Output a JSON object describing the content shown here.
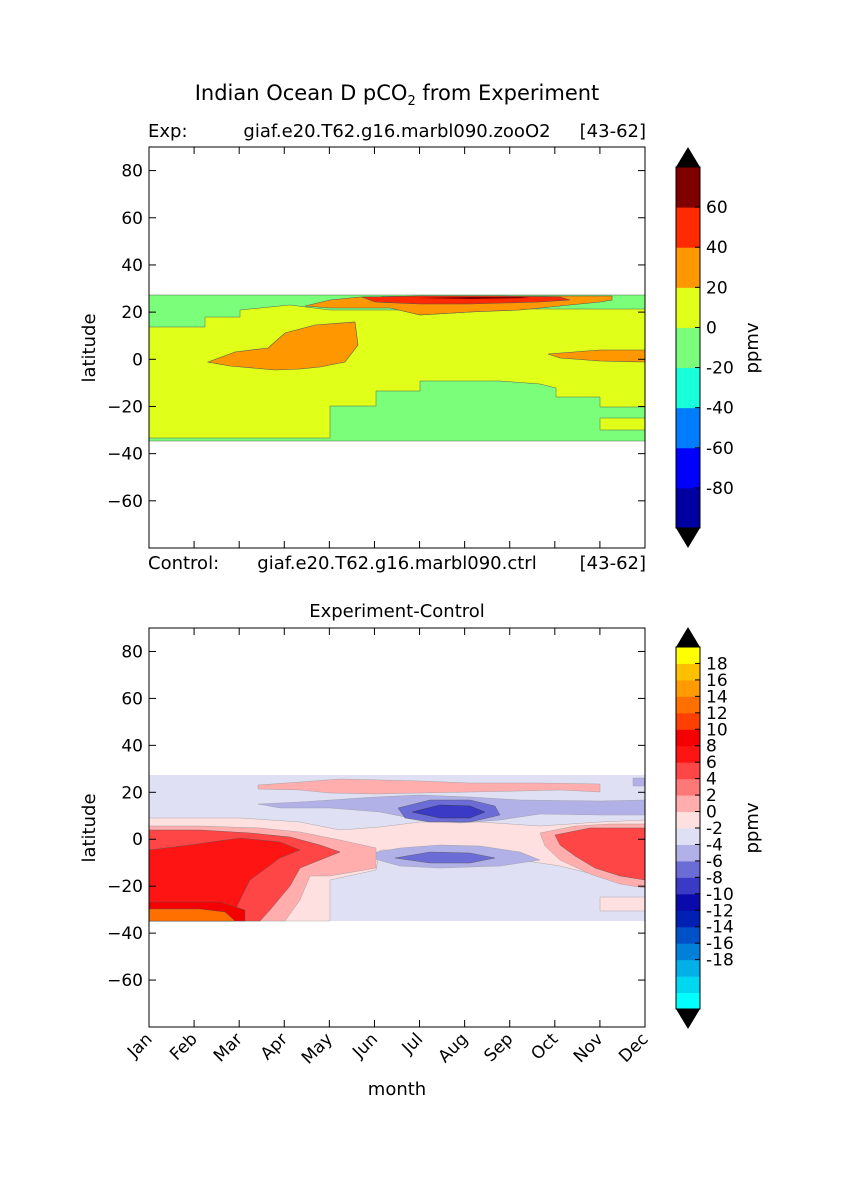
{
  "figure": {
    "title_main": "Indian Ocean D pCO",
    "title_sub": "2",
    "title_tail": " from Experiment"
  },
  "chart_data": [
    {
      "type": "heatmap",
      "subtitle_left": "Exp:",
      "subtitle_center": "giaf.e20.T62.g16.marbl090.zooO2",
      "subtitle_right": "[43-62]",
      "footer_left": "Control:",
      "footer_center": "giaf.e20.T62.g16.marbl090.ctrl",
      "footer_right": "[43-62]",
      "ylabel": "latitude",
      "xlabel": "",
      "ylim": [
        -80,
        90
      ],
      "yticks": [
        80,
        60,
        40,
        20,
        0,
        -20,
        -40,
        -60
      ],
      "ytick_labels": [
        "80",
        "60",
        "40",
        "20",
        "0",
        "−20",
        "−40",
        "−60"
      ],
      "data_lat_range": [
        -34,
        27
      ],
      "regions": [
        {
          "name": "background",
          "level": "0 to 20",
          "color": "#e0ff19"
        },
        {
          "name": "north band green",
          "level": "-20 to 0",
          "color": "#7bff7b"
        },
        {
          "name": "southern green",
          "level": "-20 to 0",
          "color": "#7bff7b"
        },
        {
          "name": "southeast green strip",
          "level": "-20 to 0",
          "color": "#7bff7b"
        },
        {
          "name": "central orange blob",
          "level": "20 to 40",
          "color": "#ff9700"
        },
        {
          "name": "east orange blob",
          "level": "20 to 40",
          "color": "#ff9700"
        },
        {
          "name": "north orange band",
          "level": "20 to 40",
          "color": "#ff9700"
        },
        {
          "name": "north red band",
          "level": "40 to 60",
          "color": "#ff2a00"
        },
        {
          "name": "north dark band",
          "level": "60 to 80",
          "color": "#800000"
        }
      ],
      "colorbar": {
        "label": "ppmv",
        "tick_labels": [
          "60",
          "40",
          "20",
          "0",
          "-20",
          "-40",
          "-60",
          "-80"
        ],
        "colors": [
          "#0000a0",
          "#0000ff",
          "#007cff",
          "#18ffdc",
          "#7bff7b",
          "#e0ff19",
          "#ff9700",
          "#ff2a00",
          "#800000"
        ],
        "over_color": "#000000",
        "under_color": "#000000"
      }
    },
    {
      "type": "heatmap",
      "title": "Experiment-Control",
      "ylabel": "latitude",
      "xlabel": "month",
      "ylim": [
        -80,
        90
      ],
      "yticks": [
        80,
        60,
        40,
        20,
        0,
        -20,
        -40,
        -60
      ],
      "ytick_labels": [
        "80",
        "60",
        "40",
        "20",
        "0",
        "−20",
        "−40",
        "−60"
      ],
      "x_categories": [
        "Jan",
        "Feb",
        "Mar",
        "Apr",
        "May",
        "Jun",
        "Jul",
        "Aug",
        "Sep",
        "Oct",
        "Nov",
        "Dec"
      ],
      "data_lat_range": [
        -34,
        27
      ],
      "regions": [
        {
          "name": "background",
          "level": "-2 to 0",
          "color": "#e0e0f4"
        },
        {
          "name": "light pink band",
          "level": "0 to 2",
          "color": "#ffe0e0"
        },
        {
          "name": "north pink band",
          "level": "2 to 4",
          "color": "#ffadad"
        },
        {
          "name": "north blue band",
          "level": "-4 to -2",
          "color": "#b1b1e8"
        },
        {
          "name": "north dark blue core",
          "level": "-8 to -6",
          "color": "#3a3ac6"
        },
        {
          "name": "south blue band",
          "level": "-4 to -2",
          "color": "#b1b1e8"
        },
        {
          "name": "south blue core",
          "level": "-6 to -4",
          "color": "#6c6cd6"
        },
        {
          "name": "western red mass",
          "level": "6 to 8",
          "color": "#ff4646"
        },
        {
          "name": "western bright red",
          "level": "8 to 10",
          "color": "#ff1414"
        },
        {
          "name": "southwest orange",
          "level": "12 to 14",
          "color": "#ff7000"
        },
        {
          "name": "eastern red mass",
          "level": "6 to 8",
          "color": "#ff4646"
        }
      ],
      "colorbar": {
        "label": "ppmv",
        "tick_labels": [
          "18",
          "16",
          "14",
          "12",
          "10",
          "8",
          "6",
          "4",
          "2",
          "0",
          "-2",
          "-4",
          "-6",
          "-8",
          "-10",
          "-12",
          "-14",
          "-16",
          "-18"
        ],
        "colors": [
          "#00ffff",
          "#00d8f2",
          "#00b0e6",
          "#0080d8",
          "#0050c8",
          "#0020b4",
          "#0a0aaa",
          "#3a3ac6",
          "#6c6cd6",
          "#b1b1e8",
          "#e0e0f4",
          "#ffe0e0",
          "#ffadad",
          "#ff7878",
          "#ff4646",
          "#ff1414",
          "#f50000",
          "#ff4000",
          "#ff7000",
          "#ff9a00",
          "#ffc000",
          "#ffff00"
        ],
        "over_color": "#000000",
        "under_color": "#000000"
      }
    }
  ]
}
